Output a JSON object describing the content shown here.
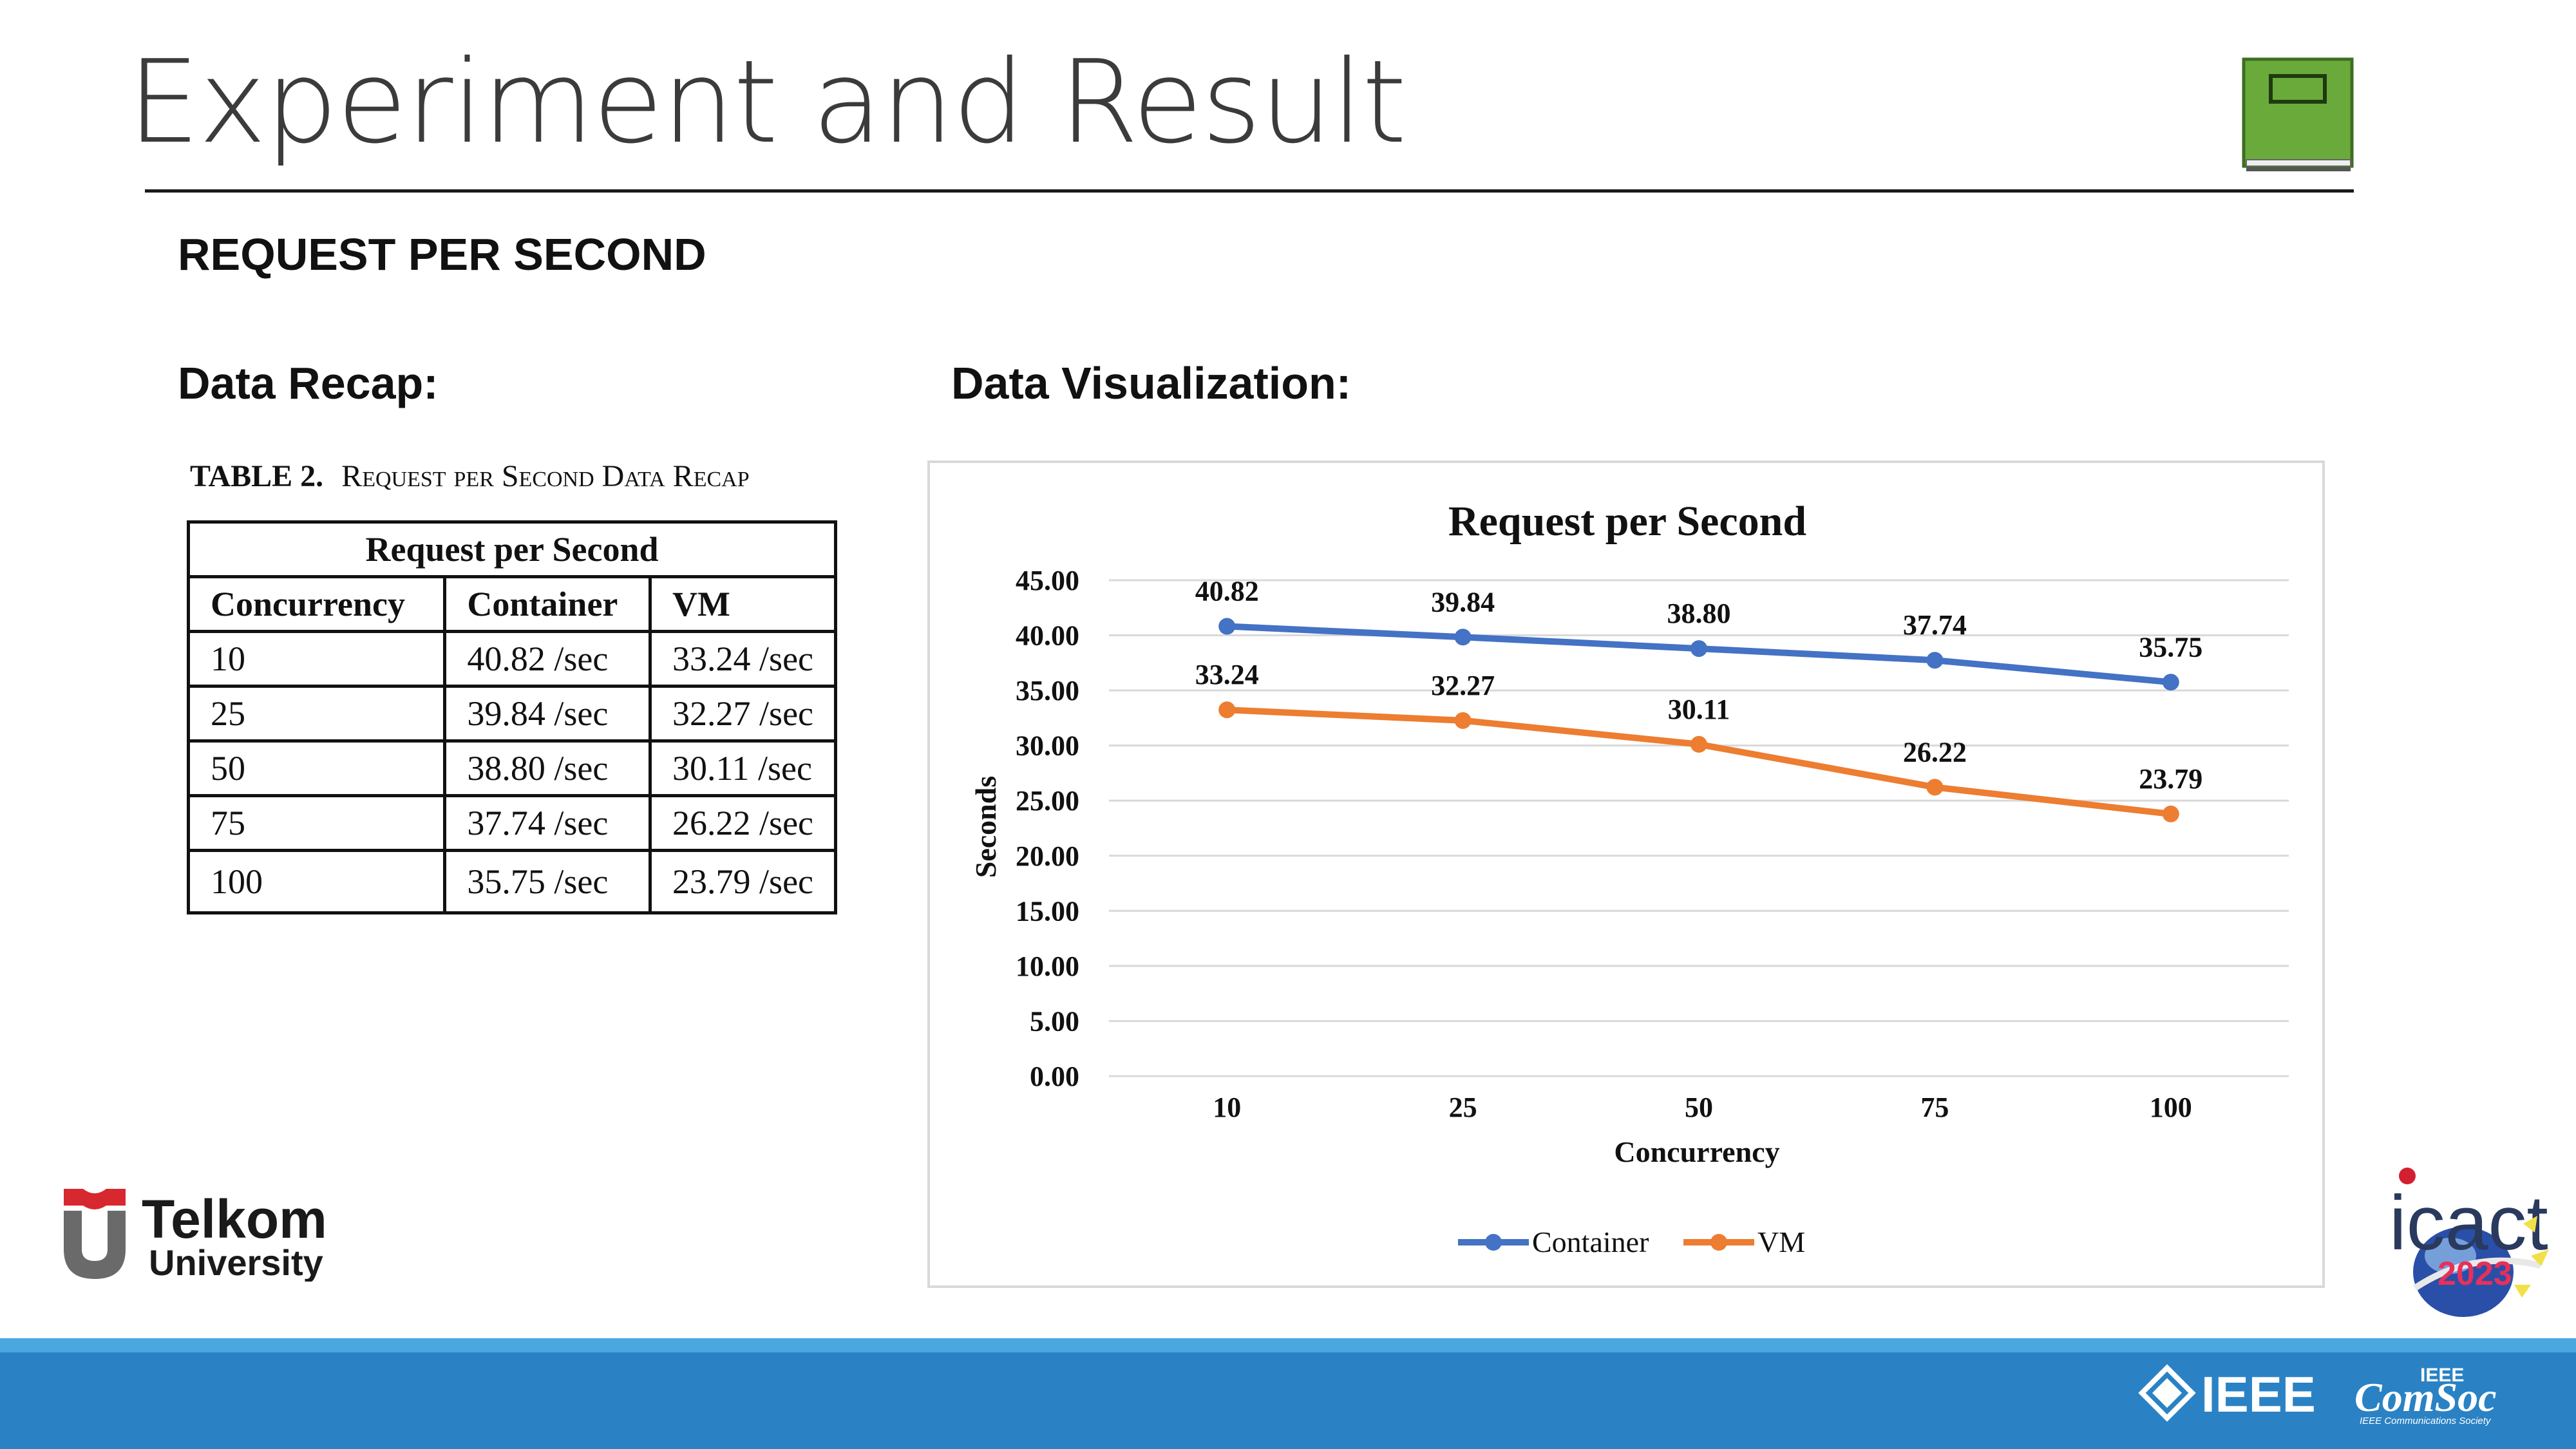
{
  "slide": {
    "title": "Experiment and Result",
    "section_heading": "REQUEST PER SECOND",
    "data_recap_label": "Data Recap:",
    "data_viz_label": "Data Visualization:"
  },
  "table": {
    "caption_number": "TABLE 2.",
    "caption_text": "Request per Second Data Recap",
    "group_header": "Request per Second",
    "columns": [
      "Concurrency",
      "Container",
      "VM"
    ],
    "rows": [
      [
        "10",
        "40.82 /sec",
        "33.24 /sec"
      ],
      [
        "25",
        "39.84 /sec",
        "32.27 /sec"
      ],
      [
        "50",
        "38.80 /sec",
        "30.11 /sec"
      ],
      [
        "75",
        "37.74 /sec",
        "26.22 /sec"
      ],
      [
        "100",
        "35.75 /sec",
        "23.79 /sec"
      ]
    ]
  },
  "chart_data": {
    "type": "line",
    "title": "Request per Second",
    "xlabel": "Concurrency",
    "ylabel": "Seconds",
    "categories": [
      "10",
      "25",
      "50",
      "75",
      "100"
    ],
    "ylim": [
      0,
      45
    ],
    "y_ticks": [
      "0.00",
      "5.00",
      "10.00",
      "15.00",
      "20.00",
      "25.00",
      "30.00",
      "35.00",
      "40.00",
      "45.00"
    ],
    "grid": true,
    "legend_position": "bottom",
    "series": [
      {
        "name": "Container",
        "color": "#4472c4",
        "values": [
          40.82,
          39.84,
          38.8,
          37.74,
          35.75
        ],
        "labels": [
          "40.82",
          "39.84",
          "38.80",
          "37.74",
          "35.75"
        ]
      },
      {
        "name": "VM",
        "color": "#ed7d31",
        "values": [
          33.24,
          32.27,
          30.11,
          26.22,
          23.79
        ],
        "labels": [
          "33.24",
          "32.27",
          "30.11",
          "26.22",
          "23.79"
        ]
      }
    ]
  },
  "logos": {
    "telkom_line1": "Telkom",
    "telkom_line2": "University",
    "icact_text": "icact",
    "icact_year": "2023",
    "ieee_text": "IEEE",
    "comsoc_top": "IEEE",
    "comsoc_main": "ComSoc",
    "comsoc_sub": "IEEE Communications Society"
  },
  "colors": {
    "band": "#2a82c4",
    "band_top": "#4aa7e0",
    "book_green": "#6aaa3a"
  }
}
